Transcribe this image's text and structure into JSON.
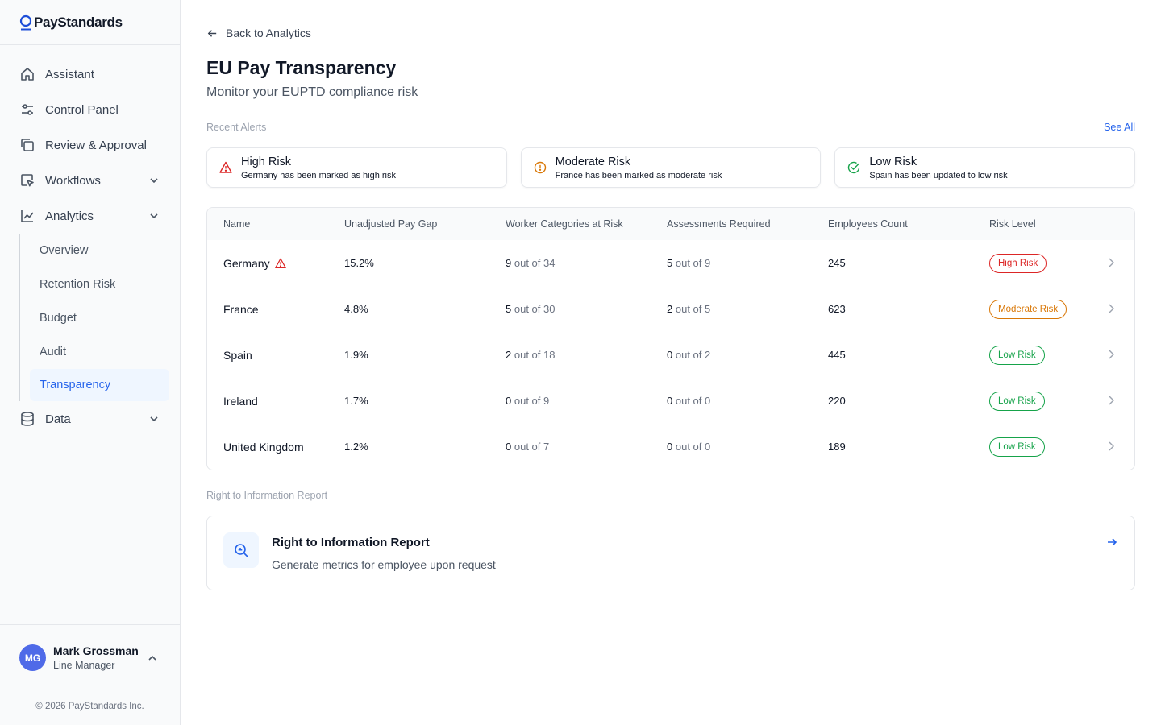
{
  "brand": {
    "name": "PayStandards"
  },
  "colors": {
    "accent": "#2563eb",
    "avatar": "#4f6ae8",
    "high": "#dc2626",
    "moderate": "#d97706",
    "low": "#16a34a"
  },
  "sidebar": {
    "items": [
      {
        "label": "Assistant",
        "icon": "home-icon"
      },
      {
        "label": "Control Panel",
        "icon": "sliders-icon"
      },
      {
        "label": "Review & Approval",
        "icon": "copy-icon"
      },
      {
        "label": "Workflows",
        "icon": "pointer-icon"
      },
      {
        "label": "Analytics",
        "icon": "chart-line-icon"
      },
      {
        "label": "Data",
        "icon": "database-icon"
      }
    ],
    "analytics_sub": [
      "Overview",
      "Retention Risk",
      "Budget",
      "Audit",
      "Transparency"
    ]
  },
  "user": {
    "initials": "MG",
    "name": "Mark Grossman",
    "role": "Line Manager"
  },
  "copyright": "© 2026 PayStandards Inc.",
  "main": {
    "back_label": "Back to Analytics",
    "title": "EU Pay Transparency",
    "subtitle": "Monitor your EUPTD compliance risk",
    "alerts_label": "Recent Alerts",
    "see_all": "See All",
    "alerts": [
      {
        "title": "High Risk",
        "text": "Germany has been marked as high risk",
        "icon": "warning-triangle-icon"
      },
      {
        "title": "Moderate Risk",
        "text": "France has been marked as moderate risk",
        "icon": "info-circle-icon"
      },
      {
        "title": "Low Risk",
        "text": "Spain has been updated to low risk",
        "icon": "check-circle-icon"
      }
    ],
    "table": {
      "headers": [
        "Name",
        "Unadjusted Pay Gap",
        "Worker Categories at Risk",
        "Assessments Required",
        "Employees Count",
        "Risk Level"
      ],
      "rows": [
        {
          "name": "Germany",
          "gap": "15.2%",
          "wc": "9",
          "wc_rest": "out of 34",
          "ar": "5",
          "ar_rest": "out of 9",
          "emp": "245",
          "risk": "High Risk"
        },
        {
          "name": "France",
          "gap": "4.8%",
          "wc": "5",
          "wc_rest": "out of 30",
          "ar": "2",
          "ar_rest": "out of 5",
          "emp": "623",
          "risk": "Moderate Risk"
        },
        {
          "name": "Spain",
          "gap": "1.9%",
          "wc": "2",
          "wc_rest": "out of 18",
          "ar": "0",
          "ar_rest": "out of 2",
          "emp": "445",
          "risk": "Low Risk"
        },
        {
          "name": "Ireland",
          "gap": "1.7%",
          "wc": "0",
          "wc_rest": "out of 9",
          "ar": "0",
          "ar_rest": "out of 0",
          "emp": "220",
          "risk": "Low Risk"
        },
        {
          "name": "United Kingdom",
          "gap": "1.2%",
          "wc": "0",
          "wc_rest": "out of 7",
          "ar": "0",
          "ar_rest": "out of 0",
          "emp": "189",
          "risk": "Low Risk"
        }
      ]
    },
    "report_label": "Right to Information Report",
    "report": {
      "title": "Right to Information Report",
      "desc": "Generate metrics for employee upon request"
    }
  }
}
